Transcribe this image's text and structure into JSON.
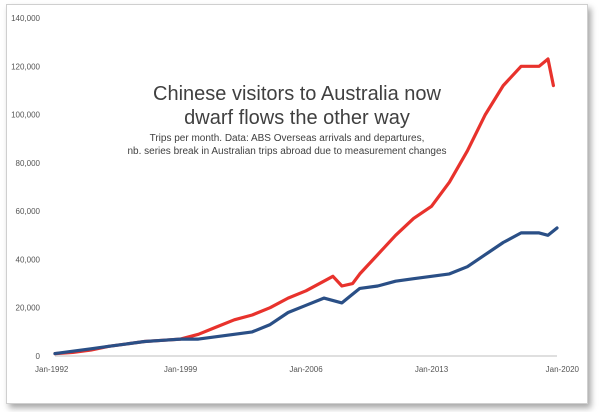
{
  "chart_data": {
    "type": "line",
    "title_lines": [
      "Chinese visitors to Australia now",
      "dwarf flows the other way"
    ],
    "subtitle_lines": [
      "Trips per month. Data: ABS Overseas arrivals and departures,",
      "nb. series break in Australian trips abroad due to measurement changes"
    ],
    "xlabel": "",
    "ylabel": "",
    "xlim": [
      1992,
      2020
    ],
    "ylim": [
      0,
      140000
    ],
    "x_ticks": [
      "Jan-1992",
      "Jan-1999",
      "Jan-2006",
      "Jan-2013",
      "Jan-2020"
    ],
    "x_tick_values": [
      1992,
      1999,
      2006,
      2013,
      2020
    ],
    "y_ticks": [
      "0",
      "20,000",
      "40,000",
      "60,000",
      "80,000",
      "100,000",
      "120,000",
      "140,000"
    ],
    "y_tick_values": [
      0,
      20000,
      40000,
      60000,
      80000,
      100000,
      120000,
      140000
    ],
    "grid": false,
    "legend": "none",
    "series": [
      {
        "color": "#e8322c",
        "x": [
          1992,
          1993,
          1994,
          1995,
          1996,
          1997,
          1998,
          1999,
          2000,
          2001,
          2002,
          2003,
          2004,
          2005,
          2006,
          2007,
          2007.5,
          2008,
          2008.6,
          2009,
          2010,
          2011,
          2012,
          2013,
          2014,
          2015,
          2016,
          2017,
          2018,
          2019,
          2019.5,
          2019.8
        ],
        "values": [
          1000,
          1500,
          2500,
          4000,
          5000,
          6000,
          6500,
          7000,
          9000,
          12000,
          15000,
          17000,
          20000,
          24000,
          27000,
          31000,
          33000,
          29000,
          30000,
          34000,
          42000,
          50000,
          57000,
          62000,
          72000,
          85000,
          100000,
          112000,
          120000,
          120000,
          123000,
          112000
        ]
      },
      {
        "color": "#2a4f86",
        "x": [
          1992,
          1993,
          1994,
          1995,
          1996,
          1997,
          1998,
          1999,
          2000,
          2001,
          2002,
          2003,
          2004,
          2005,
          2006,
          2007,
          2008,
          2008.5,
          2009,
          2010,
          2011,
          2012,
          2013,
          2014,
          2015,
          2016,
          2017,
          2018,
          2019,
          2019.5,
          2020
        ],
        "values": [
          1000,
          2000,
          3000,
          4000,
          5000,
          6000,
          6500,
          7000,
          7000,
          8000,
          9000,
          10000,
          13000,
          18000,
          21000,
          24000,
          22000,
          25000,
          28000,
          29000,
          31000,
          32000,
          33000,
          34000,
          37000,
          42000,
          47000,
          51000,
          51000,
          50000,
          53000
        ]
      }
    ]
  }
}
